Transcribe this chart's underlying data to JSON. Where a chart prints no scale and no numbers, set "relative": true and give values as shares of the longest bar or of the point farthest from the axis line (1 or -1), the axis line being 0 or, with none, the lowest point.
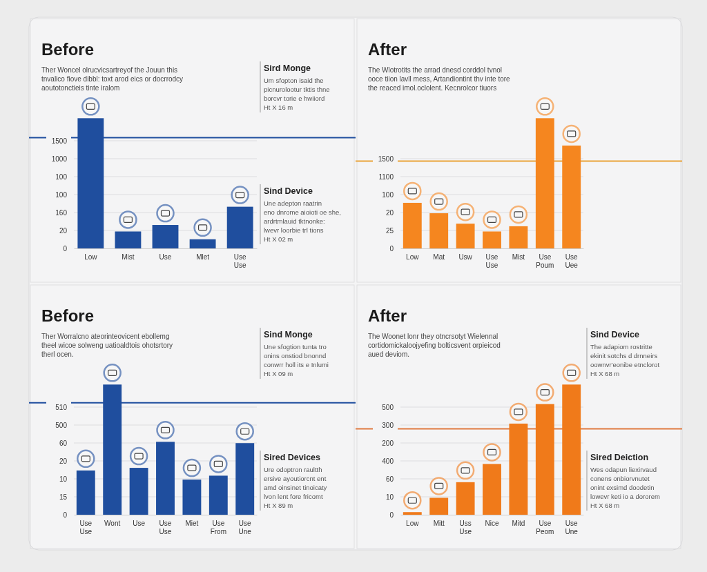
{
  "chart_data": [
    {
      "type": "bar",
      "relative": true,
      "title": "Before",
      "subtitle": "Ther Woncel olrucvicsartreyof the Jouun this\ntnvalico fiove dibbl: toxt arod eics or docrrodcy\naoutotonctieis tinte iralom",
      "categories": [
        "Low",
        "Mist",
        "Use",
        "Mlet",
        "Use\nUse"
      ],
      "values": [
        1,
        0.13,
        0.18,
        0.07,
        0.32
      ],
      "color": "#1f4e9e",
      "ref_lines": [
        {
          "axis": "y",
          "value": 0.85,
          "color": "#1f4e9e"
        }
      ],
      "annotations": [
        "0\n20\n160\n100\n100\n1000\n1500",
        "Sird Monge\nUm sfopton isaid the\npicnurolootur tktis thne\nborcvr torie e hwiiord\nHt X 16 m",
        "Sind Device\nUne adepton raatrin\neno dnrome aioioti oe she,\nardrtmlauid tktnonke:\nlwevr loorbie trl tions\nHt X 02 m"
      ]
    },
    {
      "type": "bar",
      "relative": true,
      "title": "After",
      "subtitle": "The Wlotrotits the arrad dnesd corddol tvnol\nooce tiion lavll mess, Artandiontint thv inte tore\nthe reaced imol.oclolent. Kecnrolcor tiuors",
      "categories": [
        "Low",
        "Mat",
        "Usw",
        "Use\nUse",
        "Mist",
        "Use\nPoum",
        "Use\nUee"
      ],
      "values": [
        0.35,
        0.27,
        0.19,
        0.13,
        0.17,
        1,
        0.79
      ],
      "color": "#f5861f",
      "ref_lines": [
        {
          "axis": "y",
          "value": 0.67,
          "color": "#e9a33a"
        }
      ],
      "annotations": [
        "0\n25\n20\n100\n1100\n1500"
      ]
    },
    {
      "type": "bar",
      "relative": true,
      "title": "Before",
      "subtitle": "Ther Worralcno ateorinteovicent ebollemg\ntheel wicoe solweng uatioaldtois ohotsrtory\ntherl ocen.",
      "categories": [
        "Use\nUse",
        "Wont",
        "Use",
        "Use\nUse",
        "Miet",
        "Use\nFrom",
        "Use\nUne"
      ],
      "values": [
        0.34,
        1,
        0.36,
        0.56,
        0.27,
        0.3,
        0.55
      ],
      "color": "#1f4e9e",
      "ref_lines": [
        {
          "axis": "y",
          "value": 0.86,
          "color": "#1f4e9e"
        }
      ],
      "annotations": [
        "0\n15\n10\n20\n60\n500\n510",
        "Sind Monge\nUne sfogtion tunta tro\nonins onstiod bnonnd\nconwrr holl its e Inlumi\nHt X 09 m",
        "Sired Devices\nUre odoptron raultth\nersive ayoutiorcnt ent\namd oinsinet tinoicaty\nlvon lent fore fricomt\nHt X 89 m"
      ]
    },
    {
      "type": "bar",
      "relative": true,
      "title": "After",
      "subtitle": "The Woonet lonr they otncrsotyt Wielennal\ncortidomickaloojyefing bolticsvent orpieicod\naued deviom.",
      "categories": [
        "Low",
        "Mitt",
        "Uss\nUse",
        "Nice",
        "Mitd",
        "Use\nPeom",
        "Use\nUne"
      ],
      "values": [
        0.02,
        0.13,
        0.25,
        0.39,
        0.7,
        0.85,
        1
      ],
      "color": "#f07a1a",
      "ref_lines": [
        {
          "axis": "y",
          "value": 0.66,
          "color": "#e07a40"
        }
      ],
      "annotations": [
        "0\n10\n60\n400\n200\n300\n500",
        "Sind Device\nThe adapiom rostritte\nekinit sotchs d drnneirs\noownvr'eonibe etnclorot\nHt X 68 m",
        "Sired Deiction\nWes odapun liexirvaud\nconens onbiorvnutet\nonint exsimd doodetin\nlowevr keti io a dororem\nHt X 68 m"
      ]
    }
  ]
}
